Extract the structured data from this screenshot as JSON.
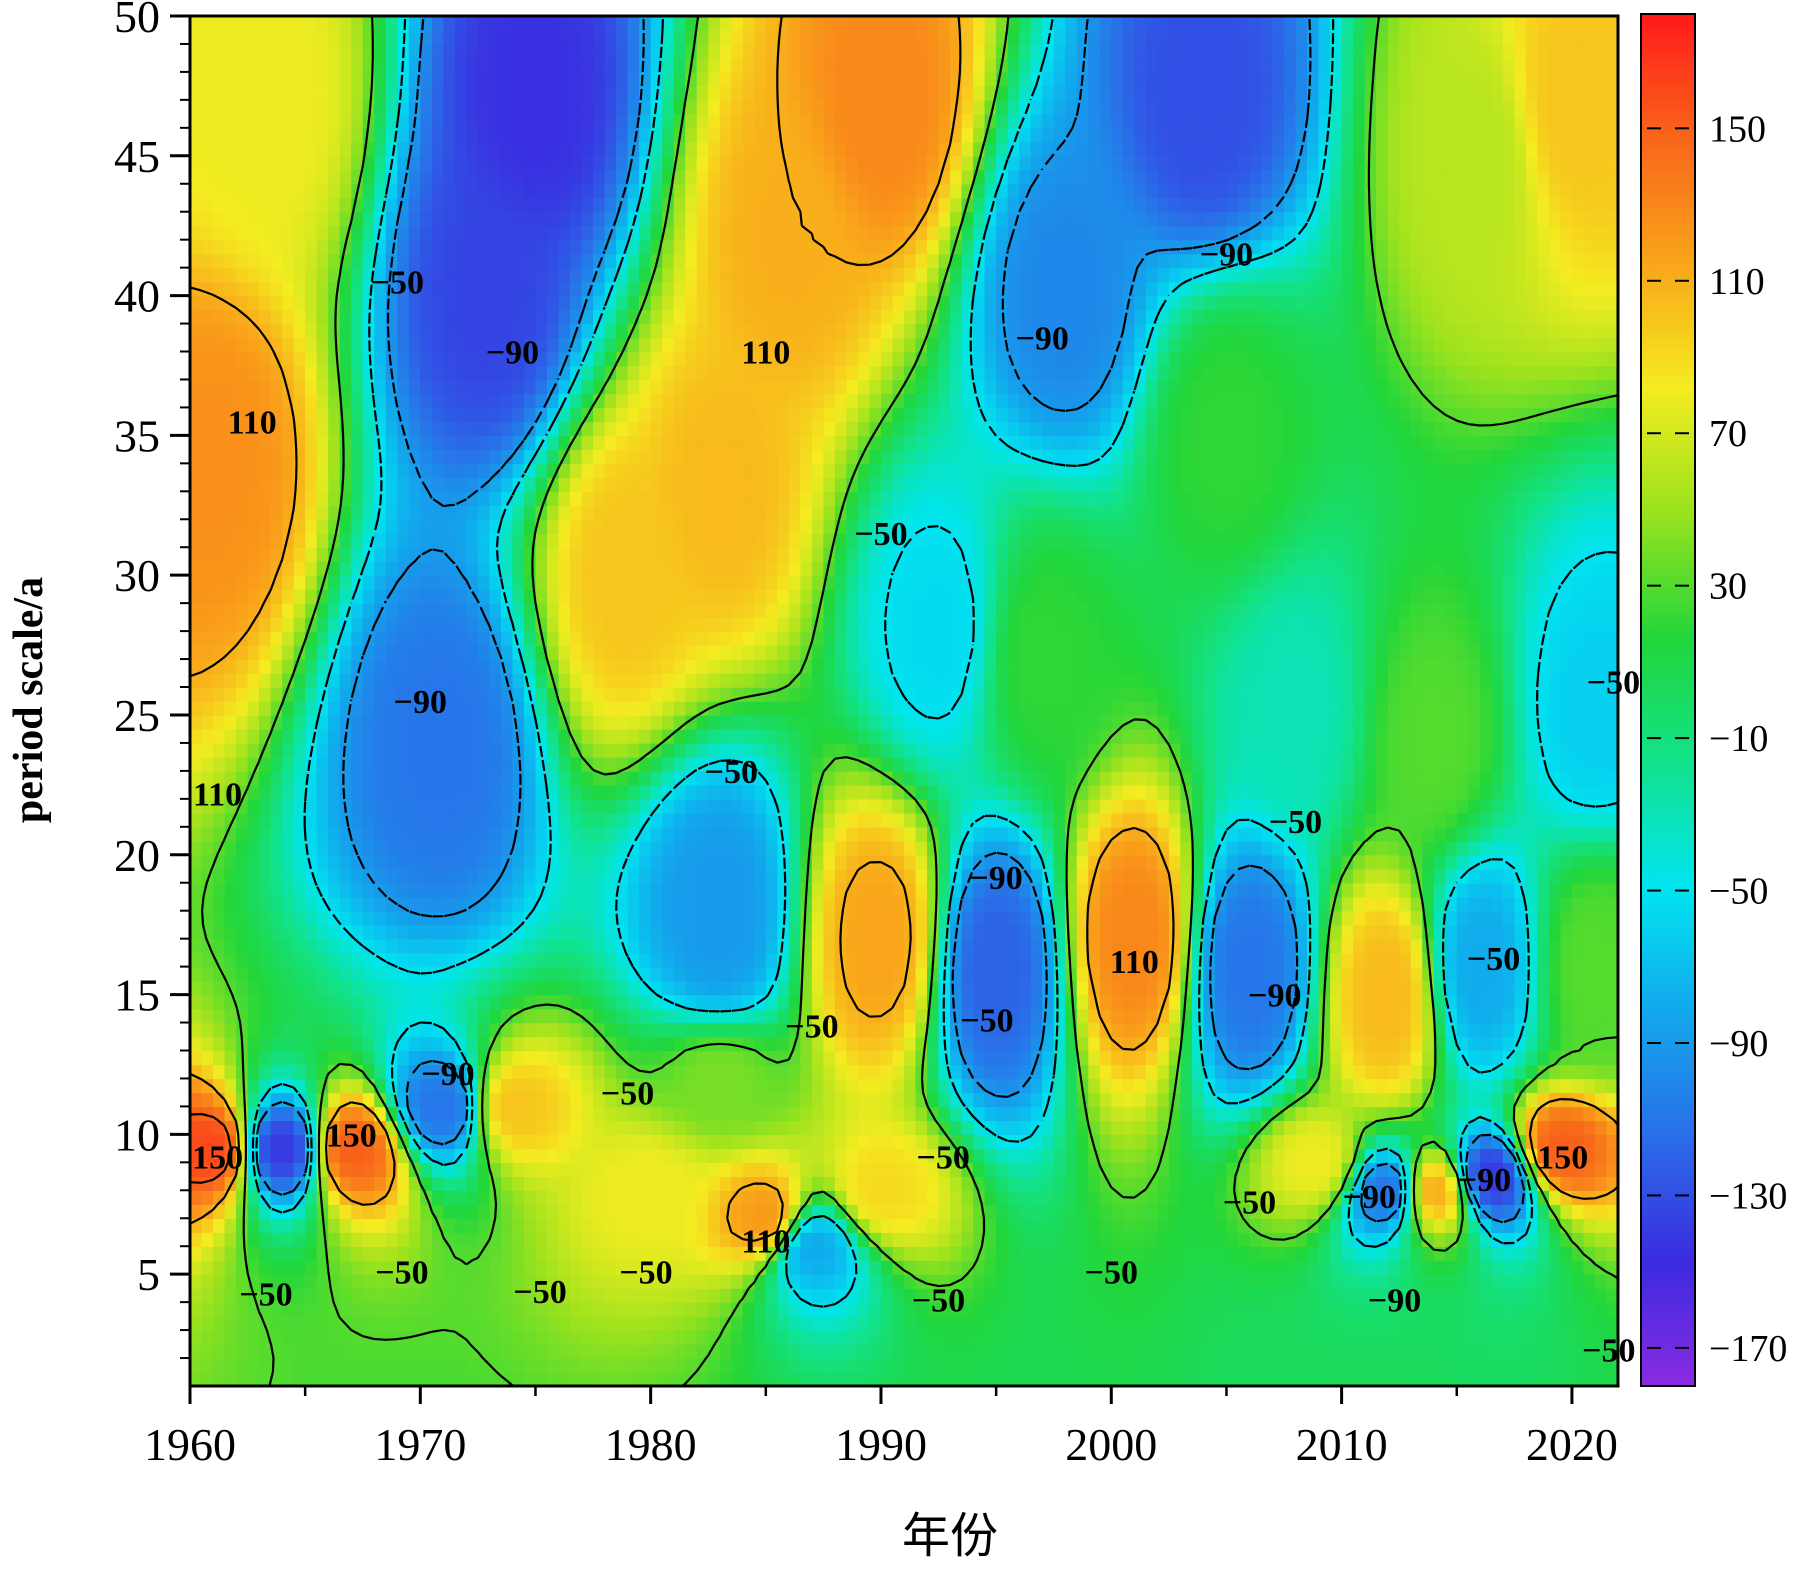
{
  "chart_data": {
    "type": "heatmap",
    "subtype": "wavelet-transform-coefficient-contour",
    "xlabel": "年份",
    "ylabel": "period scale/a",
    "xlim": [
      1960,
      2022
    ],
    "ylim": [
      1,
      50
    ],
    "x_ticks": [
      1960,
      1970,
      1980,
      1990,
      2000,
      2010,
      2020
    ],
    "x_tick_labels": [
      "1960",
      "1970",
      "1980",
      "1990",
      "2000",
      "2010",
      "2020"
    ],
    "y_ticks": [
      5,
      10,
      15,
      20,
      25,
      30,
      35,
      40,
      45,
      50
    ],
    "y_tick_labels": [
      "5",
      "10",
      "15",
      "20",
      "25",
      "30",
      "35",
      "40",
      "45",
      "50"
    ],
    "colorbar": {
      "range": [
        -180,
        180
      ],
      "ticks": [
        150,
        110,
        70,
        30,
        -10,
        -50,
        -90,
        -130,
        -170
      ],
      "tick_labels": [
        "150",
        "110",
        "70",
        "30",
        "−10",
        "−50",
        "−90",
        "−130",
        "−170"
      ],
      "colormap": [
        "#8a2be2",
        "#3a2be0",
        "#2a6ee8",
        "#12a8ec",
        "#00e5f0",
        "#12e28a",
        "#22d63a",
        "#9ae21e",
        "#f4ec20",
        "#f9a51a",
        "#f8661a",
        "#ff1a1a"
      ]
    },
    "contour_levels_solid": [
      30,
      110,
      150
    ],
    "contour_levels_dashed": [
      -50,
      -90
    ],
    "centers": [
      {
        "x": 1961,
        "y": 34,
        "value": 125
      },
      {
        "x": 1961,
        "y": 9.5,
        "value": 160
      },
      {
        "x": 1963.5,
        "y": 47,
        "value": 80
      },
      {
        "x": 1964,
        "y": 9.5,
        "value": -140
      },
      {
        "x": 1967,
        "y": 9.5,
        "value": 150
      },
      {
        "x": 1973,
        "y": 40,
        "value": -135
      },
      {
        "x": 1971,
        "y": 24,
        "value": -110
      },
      {
        "x": 1971,
        "y": 11,
        "value": -110
      },
      {
        "x": 1974,
        "y": 11,
        "value": 100
      },
      {
        "x": 1975,
        "y": 47,
        "value": -145
      },
      {
        "x": 1979,
        "y": 30,
        "value": 100
      },
      {
        "x": 1983,
        "y": 33,
        "value": 105
      },
      {
        "x": 1986,
        "y": 42,
        "value": 110
      },
      {
        "x": 1990,
        "y": 47,
        "value": 130
      },
      {
        "x": 1983,
        "y": 18,
        "value": -90
      },
      {
        "x": 1983,
        "y": 12,
        "value": 40
      },
      {
        "x": 1980,
        "y": 8,
        "value": 80
      },
      {
        "x": 1985,
        "y": 7,
        "value": 120
      },
      {
        "x": 1987,
        "y": 6,
        "value": -80
      },
      {
        "x": 1990,
        "y": 17,
        "value": 115
      },
      {
        "x": 1990,
        "y": 8,
        "value": 90
      },
      {
        "x": 1992.5,
        "y": 28,
        "value": -55
      },
      {
        "x": 1995,
        "y": 16,
        "value": -120
      },
      {
        "x": 1997,
        "y": 27,
        "value": 20
      },
      {
        "x": 1998,
        "y": 40,
        "value": -100
      },
      {
        "x": 2001,
        "y": 17,
        "value": 130
      },
      {
        "x": 2005,
        "y": 35,
        "value": 20
      },
      {
        "x": 2004,
        "y": 47,
        "value": -130
      },
      {
        "x": 2006,
        "y": 16,
        "value": -110
      },
      {
        "x": 2008,
        "y": 25,
        "value": -30
      },
      {
        "x": 2009,
        "y": 9,
        "value": 80
      },
      {
        "x": 2012,
        "y": 15,
        "value": 105
      },
      {
        "x": 2012,
        "y": 8,
        "value": -110
      },
      {
        "x": 2014,
        "y": 24,
        "value": 30
      },
      {
        "x": 2014,
        "y": 8,
        "value": 110
      },
      {
        "x": 2016,
        "y": 45,
        "value": 60
      },
      {
        "x": 2016.5,
        "y": 8.5,
        "value": -140
      },
      {
        "x": 2016,
        "y": 16,
        "value": -80
      },
      {
        "x": 2020,
        "y": 47,
        "value": 100
      },
      {
        "x": 2019.5,
        "y": 9.5,
        "value": 150
      },
      {
        "x": 2021,
        "y": 25,
        "value": -60
      },
      {
        "x": 2021,
        "y": 16,
        "value": 30
      }
    ],
    "annotations": [
      {
        "text": "110",
        "x": 1962.7,
        "y": 35.5
      },
      {
        "text": "110",
        "x": 1961.2,
        "y": 22.2
      },
      {
        "text": "−50",
        "x": 1969,
        "y": 40.5
      },
      {
        "text": "−90",
        "x": 1974,
        "y": 38
      },
      {
        "text": "−90",
        "x": 1970,
        "y": 25.5
      },
      {
        "text": "110",
        "x": 1985,
        "y": 38
      },
      {
        "text": "−90",
        "x": 1997,
        "y": 38.5
      },
      {
        "text": "−90",
        "x": 2005,
        "y": 41.5
      },
      {
        "text": "−50",
        "x": 1990,
        "y": 31.5
      },
      {
        "text": "−50",
        "x": 1983.5,
        "y": 23
      },
      {
        "text": "−50",
        "x": 2008,
        "y": 21.2
      },
      {
        "text": "−50",
        "x": 2021.8,
        "y": 26.2
      },
      {
        "text": "−90",
        "x": 1995,
        "y": 19.2
      },
      {
        "text": "110",
        "x": 2001,
        "y": 16.2
      },
      {
        "text": "−50",
        "x": 2016.6,
        "y": 16.3
      },
      {
        "text": "−90",
        "x": 2007.1,
        "y": 15
      },
      {
        "text": "−50",
        "x": 1987,
        "y": 13.9
      },
      {
        "text": "−50",
        "x": 1994.6,
        "y": 14.1
      },
      {
        "text": "−90",
        "x": 1971.2,
        "y": 12.2
      },
      {
        "text": "−50",
        "x": 1979,
        "y": 11.5
      },
      {
        "text": "150",
        "x": 1967,
        "y": 10
      },
      {
        "text": "150",
        "x": 1961.2,
        "y": 9.2
      },
      {
        "text": "150",
        "x": 2019.6,
        "y": 9.2
      },
      {
        "text": "−50",
        "x": 1992.7,
        "y": 9.2
      },
      {
        "text": "−90",
        "x": 2016.2,
        "y": 8.4
      },
      {
        "text": "−90",
        "x": 2011.2,
        "y": 7.8
      },
      {
        "text": "−50",
        "x": 2006,
        "y": 7.6
      },
      {
        "text": "110",
        "x": 1985,
        "y": 6.2
      },
      {
        "text": "−50",
        "x": 1969.2,
        "y": 5.1
      },
      {
        "text": "−50",
        "x": 1979.8,
        "y": 5.1
      },
      {
        "text": "−50",
        "x": 2000,
        "y": 5.1
      },
      {
        "text": "−50",
        "x": 1963.3,
        "y": 4.3
      },
      {
        "text": "−50",
        "x": 1975.2,
        "y": 4.4
      },
      {
        "text": "−50",
        "x": 1992.5,
        "y": 4.1
      },
      {
        "text": "−90",
        "x": 2012.3,
        "y": 4.1
      },
      {
        "text": "−50",
        "x": 2021.6,
        "y": 2.3
      }
    ]
  }
}
